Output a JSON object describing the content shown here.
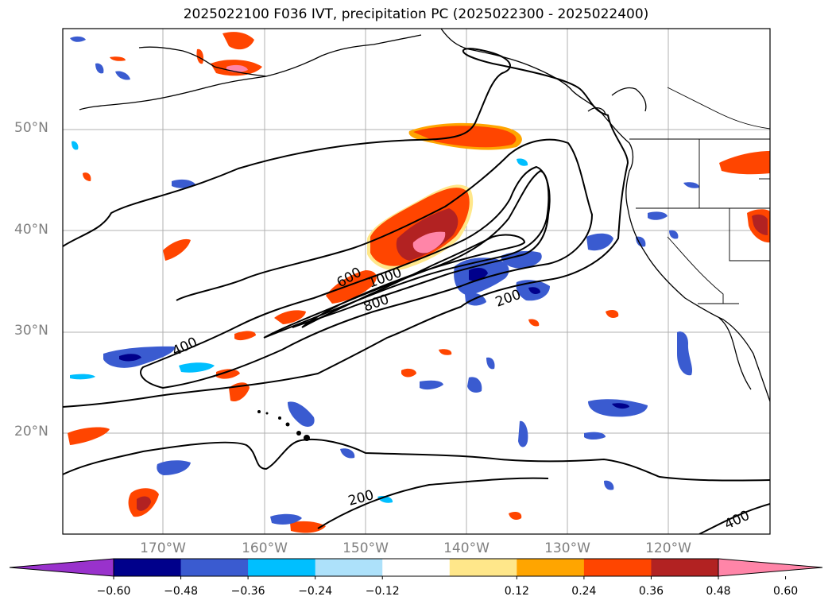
{
  "title": "2025022100 F036 IVT, precipitation PC (2025022300 - 2025022400)",
  "lat_ticks": [
    "50°N",
    "40°N",
    "30°N",
    "20°N"
  ],
  "lon_ticks": [
    "170°W",
    "160°W",
    "150°W",
    "140°W",
    "130°W",
    "120°W"
  ],
  "contour_labels": [
    "600",
    "1000",
    "800",
    "200",
    "400",
    "200",
    "400"
  ],
  "colorbar": {
    "ticks": [
      "−0.60",
      "−0.48",
      "−0.36",
      "−0.24",
      "−0.12",
      "0.12",
      "0.24",
      "0.36",
      "0.48",
      "0.60"
    ],
    "colors": [
      "#9932CC",
      "#00008B",
      "#3A5BD0",
      "#00BFFF",
      "#ADE1FA",
      "#FFFFFF",
      "#FFE78A",
      "#FFA500",
      "#FF4500",
      "#B22222",
      "#FF85A8"
    ]
  }
}
